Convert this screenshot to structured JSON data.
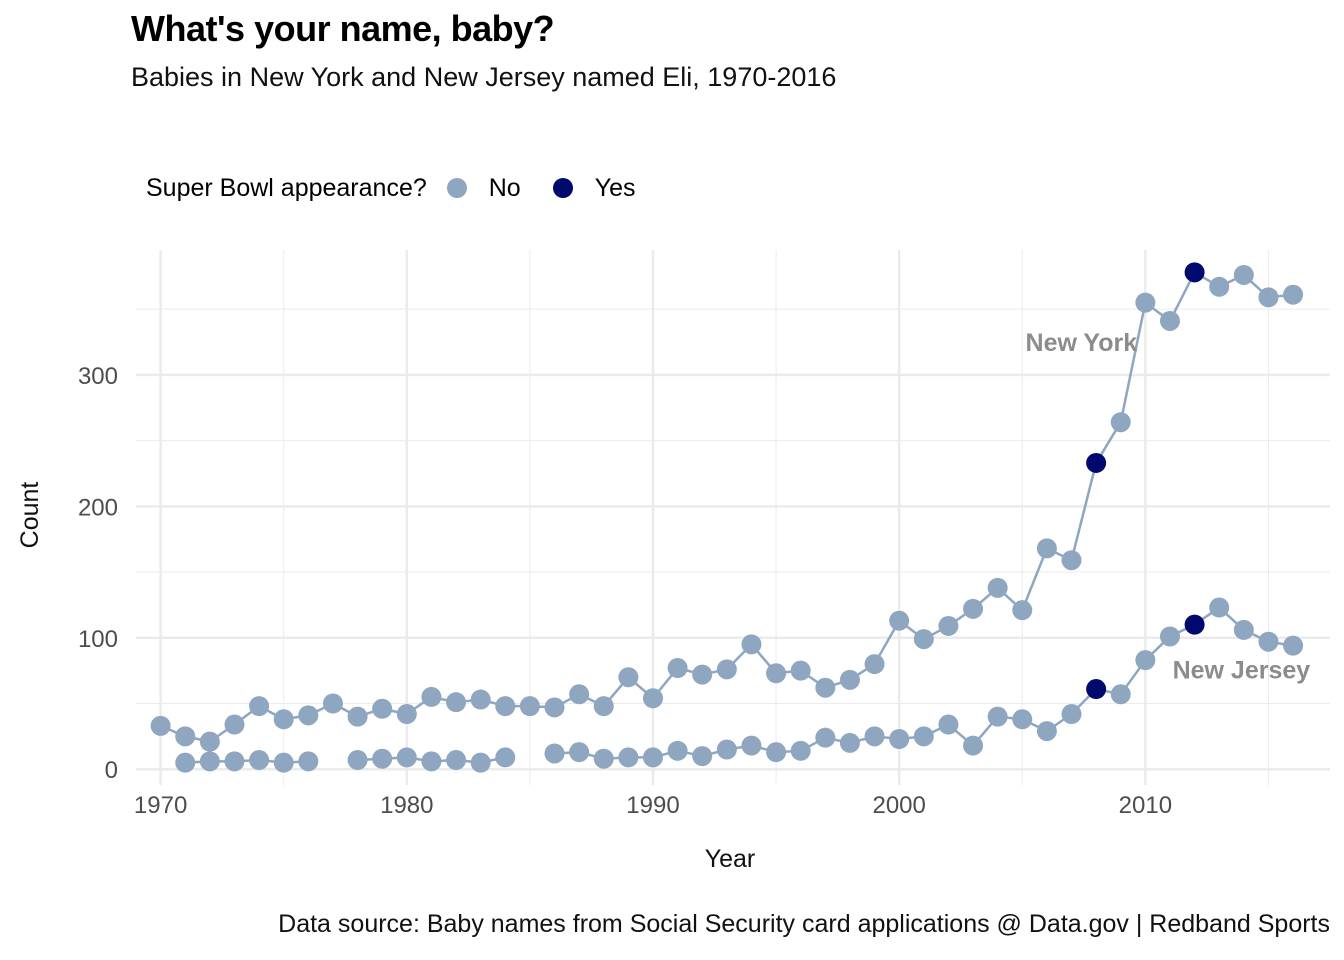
{
  "chart_data": {
    "type": "line",
    "title": "What's your name, baby?",
    "subtitle": "Babies in New York and New Jersey named Eli, 1970-2016",
    "xlabel": "Year",
    "ylabel": "Count",
    "caption": "Data source: Baby names from Social Security card applications @ Data.gov | Redband Sports",
    "xlim": [
      1969,
      2017.5
    ],
    "ylim": [
      -12,
      395
    ],
    "x_ticks": [
      1970,
      1980,
      1990,
      2000,
      2010
    ],
    "y_ticks": [
      0,
      100,
      200,
      300
    ],
    "grid": true,
    "legend": {
      "title": "Super Bowl appearance?",
      "position": "top-left",
      "items": [
        {
          "label": "No",
          "color": "#8fa6c0"
        },
        {
          "label": "Yes",
          "color": "#000a6e"
        }
      ]
    },
    "colors": {
      "no": "#8fa6c0",
      "yes": "#000a6e",
      "label": "#8c8c8c",
      "grid": "#ebebeb",
      "axis_text": "#4d4d4d"
    },
    "series": [
      {
        "name": "New York",
        "x": [
          1970,
          1971,
          1972,
          1973,
          1974,
          1975,
          1976,
          1977,
          1978,
          1979,
          1980,
          1981,
          1982,
          1983,
          1984,
          1985,
          1986,
          1987,
          1988,
          1989,
          1990,
          1991,
          1992,
          1993,
          1994,
          1995,
          1996,
          1997,
          1998,
          1999,
          2000,
          2001,
          2002,
          2003,
          2004,
          2005,
          2006,
          2007,
          2008,
          2009,
          2010,
          2011,
          2012,
          2013,
          2014,
          2015,
          2016
        ],
        "y": [
          33,
          25,
          21,
          34,
          48,
          38,
          41,
          50,
          40,
          46,
          42,
          55,
          51,
          53,
          48,
          48,
          47,
          57,
          48,
          70,
          54,
          77,
          72,
          76,
          95,
          73,
          75,
          62,
          68,
          80,
          113,
          99,
          109,
          122,
          138,
          121,
          168,
          159,
          233,
          264,
          355,
          341,
          378,
          367,
          376,
          359,
          361
        ],
        "super_bowl": [
          2008,
          2012
        ]
      },
      {
        "name": "New Jersey",
        "x": [
          1971,
          1972,
          1973,
          1974,
          1975,
          1976,
          1978,
          1979,
          1980,
          1981,
          1982,
          1983,
          1984,
          1986,
          1987,
          1988,
          1989,
          1990,
          1991,
          1992,
          1993,
          1994,
          1995,
          1996,
          1997,
          1998,
          1999,
          2000,
          2001,
          2002,
          2003,
          2004,
          2005,
          2006,
          2007,
          2008,
          2009,
          2010,
          2011,
          2012,
          2013,
          2014,
          2015,
          2016
        ],
        "y": [
          5,
          6,
          6,
          7,
          5,
          6,
          7,
          8,
          9,
          6,
          7,
          5,
          9,
          12,
          13,
          8,
          9,
          9,
          14,
          10,
          15,
          18,
          13,
          14,
          24,
          20,
          25,
          23,
          25,
          34,
          18,
          40,
          38,
          29,
          42,
          61,
          57,
          83,
          101,
          110,
          123,
          106,
          97,
          94
        ],
        "super_bowl": [
          2008,
          2012
        ]
      }
    ],
    "annotations": [
      {
        "text": "New York",
        "x": 2007.4,
        "y": 318
      },
      {
        "text": "New Jersey",
        "x": 2013.9,
        "y": 69
      }
    ]
  }
}
